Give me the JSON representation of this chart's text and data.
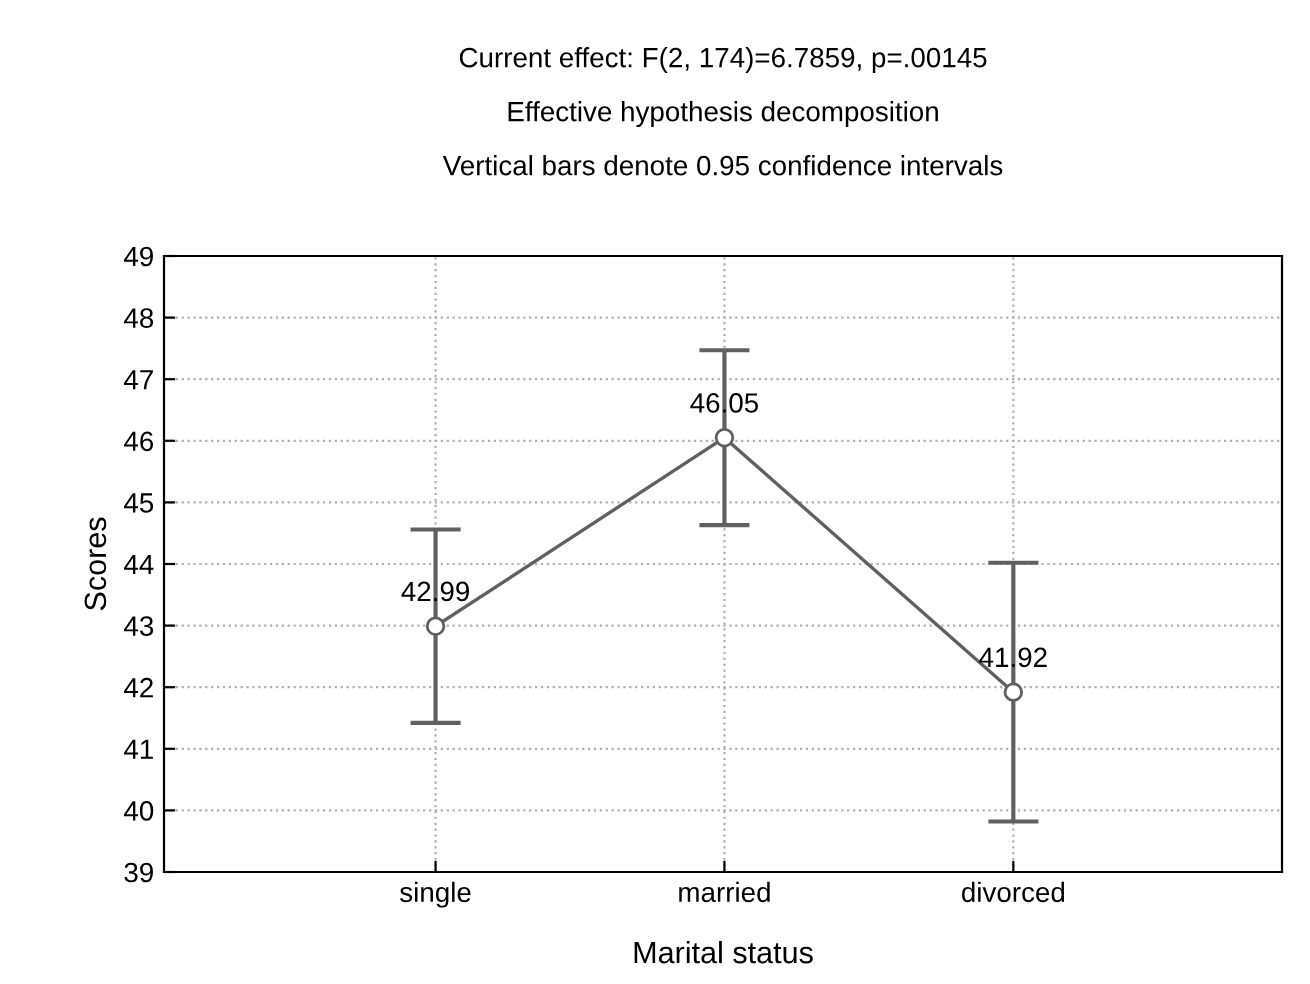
{
  "chart_data": {
    "type": "line",
    "title": "Current effect: F(2, 174)=6.7859, p=.00145",
    "subtitle": "Effective hypothesis decomposition\nVertical bars denote 0.95 confidence intervals",
    "xlabel": "Marital status",
    "ylabel": "Scores",
    "categories": [
      "single",
      "married",
      "divorced"
    ],
    "values": [
      42.99,
      46.05,
      41.92
    ],
    "errors": [
      1.57,
      1.42,
      2.1
    ],
    "color": "#606060",
    "marker": "circle",
    "line_style": "solid",
    "ylim": [
      39,
      49
    ],
    "yticks": [
      39,
      40,
      41,
      42,
      43,
      44,
      45,
      46,
      47,
      48,
      49
    ],
    "grid": true,
    "data_labels": true
  }
}
